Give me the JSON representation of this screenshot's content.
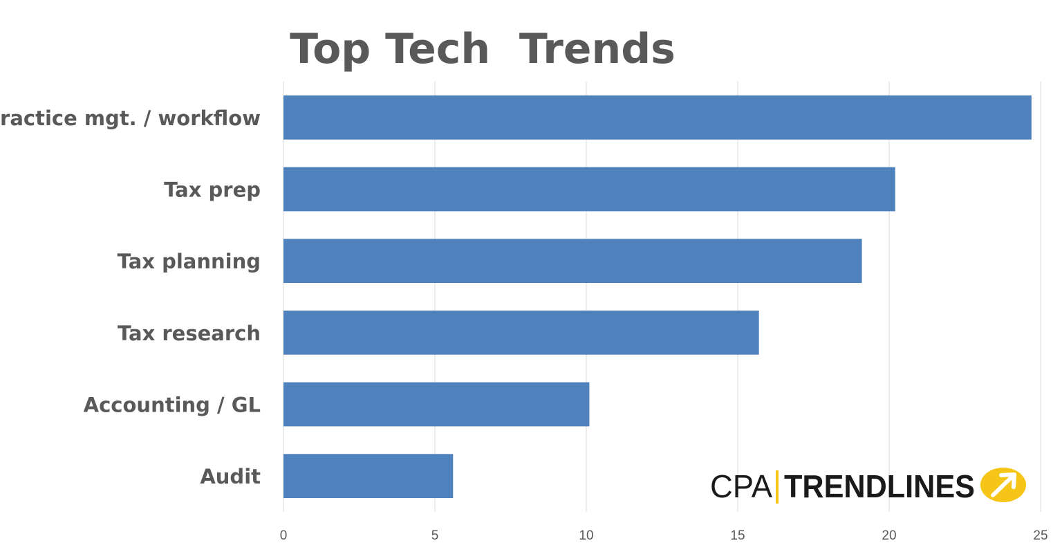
{
  "chart_data": {
    "type": "bar",
    "orientation": "horizontal",
    "title": "Top Tech  Trends",
    "categories": [
      "Practice mgt. / workflow",
      "Tax prep",
      "Tax planning",
      "Tax research",
      "Accounting / GL",
      "Audit"
    ],
    "values": [
      24.7,
      20.2,
      19.1,
      15.7,
      10.1,
      5.6
    ],
    "xlim": [
      0,
      25
    ],
    "xticks": [
      "0",
      "5",
      "10",
      "15",
      "20",
      "25"
    ],
    "grid": "vertical",
    "legend": "none",
    "colors": {
      "bar": "#4F81BD",
      "grid": "#D9D9D9",
      "text": "#595959"
    }
  },
  "logo": {
    "part1": "CPA",
    "part2": "TRENDLINES",
    "accent_color": "#F5C518"
  }
}
